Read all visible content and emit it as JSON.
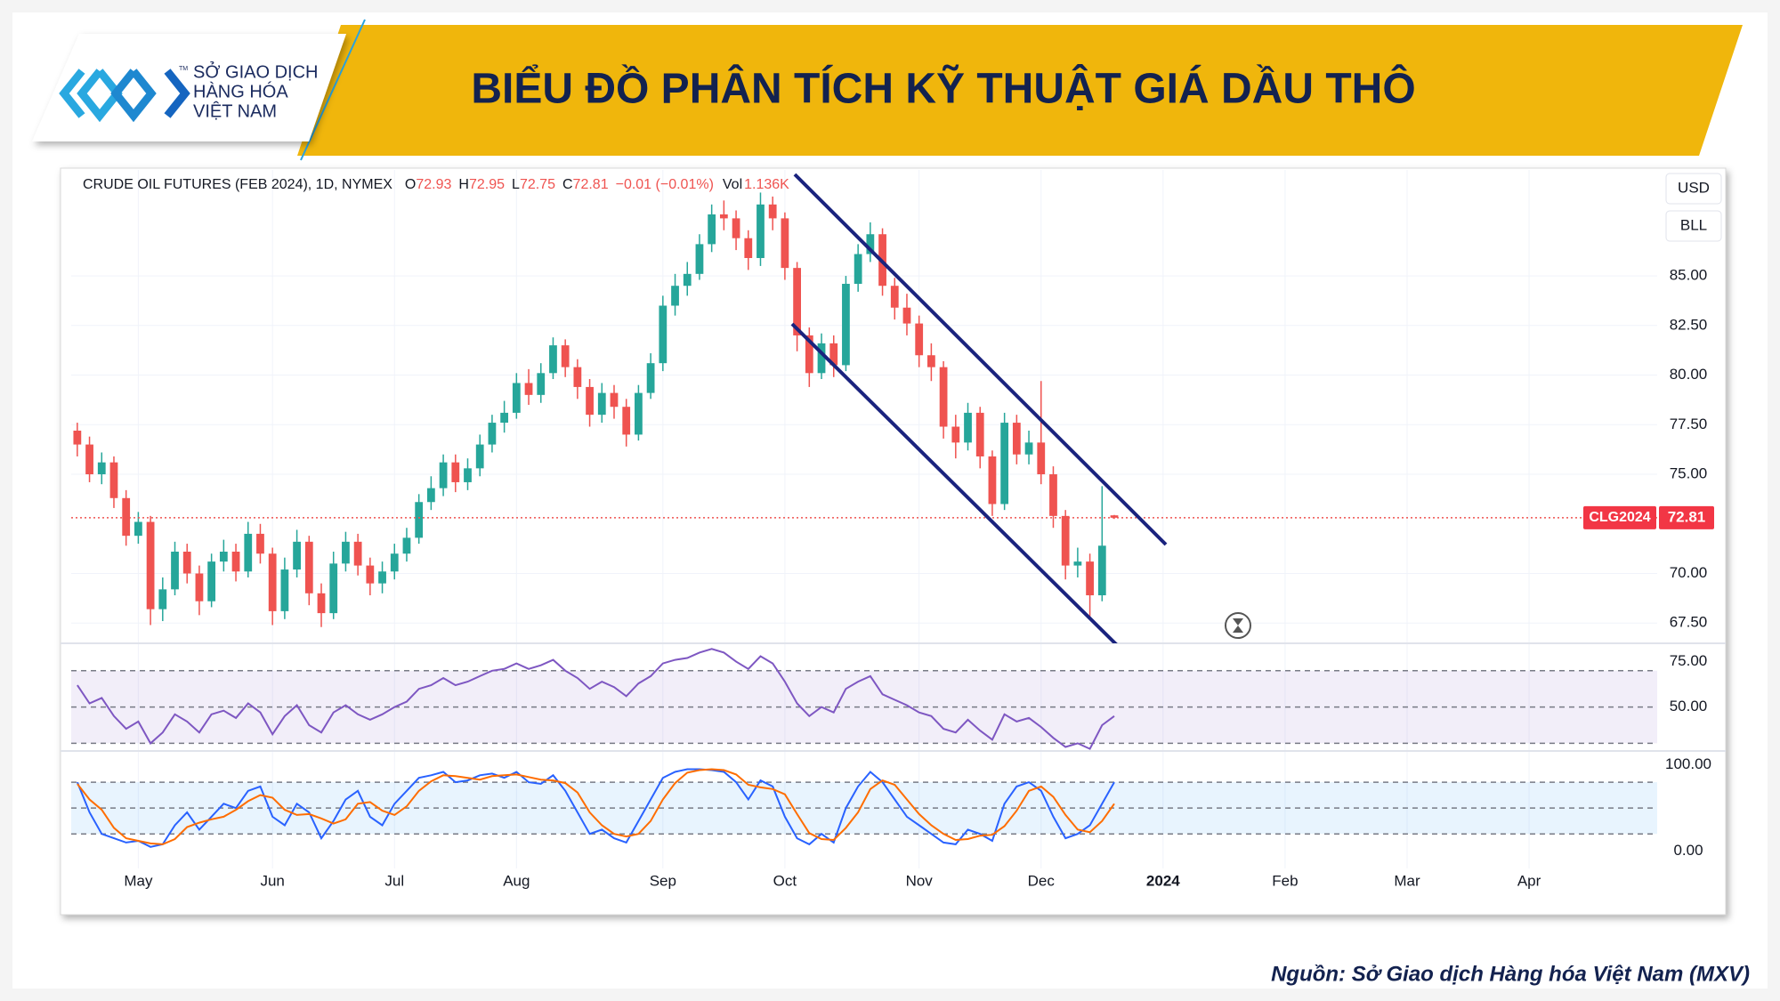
{
  "header": {
    "title": "BIỂU ĐỒ PHÂN TÍCH KỸ THUẬT GIÁ DẦU THÔ",
    "logo_lines": [
      "SỞ GIAO DỊCH",
      "HÀNG HÓA",
      "VIỆT NAM"
    ],
    "logo_tm": "TM"
  },
  "chart_data": {
    "type": "candlestick",
    "instrument": "CRUDE OIL FUTURES (FEB 2024), 1D, NYMEX",
    "ohlc_labels": [
      "O",
      "H",
      "L",
      "C"
    ],
    "change": "−0.01 (−0.01%)",
    "volume_label": "Vol",
    "volume": "1.136K",
    "currency": "USD",
    "unit": "BLL",
    "symbol_tag": "CLG2024",
    "colors": {
      "up": "#26a69a",
      "down": "#ef5350"
    },
    "grid": true,
    "categories": [
      null,
      null,
      null,
      null,
      null,
      "May",
      null,
      null,
      null,
      null,
      null,
      null,
      null,
      null,
      null,
      null,
      "Jun",
      null,
      null,
      null,
      null,
      null,
      null,
      null,
      null,
      null,
      "Jul",
      null,
      null,
      null,
      null,
      null,
      null,
      null,
      null,
      null,
      "Aug",
      null,
      null,
      null,
      null,
      null,
      null,
      null,
      null,
      null,
      null,
      null,
      "Sep",
      null,
      null,
      null,
      null,
      null,
      null,
      null,
      null,
      null,
      "Oct",
      null,
      null,
      null,
      null,
      null,
      null,
      null,
      null,
      null,
      null,
      "Nov",
      null,
      null,
      null,
      null,
      null,
      null,
      null,
      null,
      null,
      "Dec",
      null,
      null,
      null,
      null,
      null,
      null,
      null,
      null,
      null,
      "2024",
      null,
      null,
      null,
      null,
      null,
      null,
      null,
      null,
      null,
      "Feb",
      null,
      null,
      null,
      null,
      null,
      null,
      null,
      null,
      null,
      "Mar",
      null,
      null,
      null,
      null,
      null,
      null,
      null,
      null,
      null,
      "Apr",
      null,
      null,
      null,
      null,
      null,
      null,
      null,
      null,
      null,
      null
    ],
    "open": [
      77.2,
      76.5,
      75.0,
      75.6,
      73.8,
      71.9,
      72.6,
      68.2,
      69.2,
      71.1,
      70.0,
      68.6,
      70.6,
      71.1,
      70.1,
      72.0,
      71.0,
      68.1,
      70.2,
      71.6,
      69.0,
      68.0,
      70.5,
      71.6,
      70.4,
      69.5,
      70.1,
      71.0,
      71.8,
      73.6,
      74.3,
      75.6,
      74.6,
      75.3,
      76.5,
      77.6,
      78.1,
      79.6,
      79.0,
      80.1,
      81.5,
      80.4,
      79.4,
      78.0,
      79.1,
      78.4,
      77.0,
      79.1,
      80.6,
      83.5,
      84.5,
      85.1,
      86.6,
      88.1,
      87.9,
      86.9,
      85.9,
      88.6,
      87.9,
      85.4,
      82.0,
      80.1,
      81.6,
      80.5,
      84.6,
      86.1,
      87.1,
      84.5,
      83.4,
      82.6,
      81.0,
      80.4,
      77.4,
      76.6,
      78.1,
      75.9,
      73.5,
      77.6,
      76.0,
      76.6,
      75.0,
      72.9,
      70.4,
      70.6,
      68.9,
      72.93,
      null,
      null,
      null,
      null,
      null,
      null,
      null,
      null,
      null,
      null,
      null,
      null,
      null,
      null,
      null,
      null,
      null,
      null,
      null,
      null,
      null,
      null,
      null,
      null,
      null,
      null,
      null,
      null,
      null,
      null,
      null,
      null,
      null,
      null,
      null,
      null,
      null,
      null,
      null,
      null,
      null,
      null,
      null,
      null
    ],
    "high": [
      77.6,
      76.9,
      76.1,
      75.9,
      74.2,
      73.1,
      72.9,
      69.8,
      71.6,
      71.5,
      70.4,
      71.0,
      71.7,
      71.5,
      72.6,
      72.5,
      71.3,
      70.8,
      72.2,
      71.9,
      69.5,
      71.1,
      72.1,
      72.0,
      70.8,
      70.6,
      71.5,
      72.3,
      74.0,
      74.9,
      76.0,
      76.0,
      75.8,
      77.0,
      78.0,
      78.7,
      80.1,
      80.3,
      80.6,
      81.9,
      81.8,
      80.8,
      79.8,
      79.6,
      79.5,
      78.8,
      79.5,
      81.1,
      84.0,
      85.1,
      85.7,
      87.1,
      88.6,
      88.8,
      88.3,
      87.3,
      89.2,
      89.0,
      88.2,
      85.7,
      82.4,
      82.1,
      82.0,
      85.0,
      86.6,
      87.7,
      87.4,
      84.9,
      84.1,
      83.0,
      81.6,
      80.7,
      78.0,
      78.6,
      78.4,
      76.2,
      78.1,
      78.0,
      77.2,
      79.7,
      75.4,
      73.2,
      71.3,
      71.0,
      74.4,
      72.95,
      null,
      null,
      null,
      null,
      null,
      null,
      null,
      null,
      null,
      null,
      null,
      null,
      null,
      null,
      null,
      null,
      null,
      null,
      null,
      null,
      null,
      null,
      null,
      null,
      null,
      null,
      null,
      null,
      null,
      null,
      null,
      null,
      null,
      null,
      null,
      null,
      null,
      null,
      null,
      null,
      null,
      null,
      null,
      null
    ],
    "low": [
      75.9,
      74.6,
      74.5,
      73.3,
      71.4,
      71.5,
      67.4,
      67.6,
      68.9,
      69.5,
      67.9,
      68.3,
      70.1,
      69.6,
      69.8,
      70.5,
      67.4,
      67.7,
      69.8,
      68.4,
      67.3,
      67.7,
      70.1,
      69.9,
      68.9,
      69.0,
      69.7,
      70.6,
      71.5,
      73.2,
      73.9,
      74.1,
      74.2,
      74.9,
      76.1,
      77.1,
      77.8,
      78.5,
      78.6,
      79.8,
      79.9,
      78.8,
      77.4,
      77.6,
      77.8,
      76.4,
      76.7,
      78.8,
      80.2,
      83.0,
      84.0,
      84.8,
      86.2,
      87.3,
      86.3,
      85.3,
      85.5,
      87.3,
      84.8,
      81.2,
      79.4,
      79.8,
      79.9,
      80.2,
      84.2,
      85.7,
      84.0,
      82.8,
      82.0,
      80.4,
      79.7,
      76.8,
      75.8,
      76.2,
      75.3,
      72.9,
      73.2,
      75.5,
      75.5,
      74.5,
      72.3,
      69.7,
      69.8,
      67.8,
      68.6,
      72.75,
      null,
      null,
      null,
      null,
      null,
      null,
      null,
      null,
      null,
      null,
      null,
      null,
      null,
      null,
      null,
      null,
      null,
      null,
      null,
      null,
      null,
      null,
      null,
      null,
      null,
      null,
      null,
      null,
      null,
      null,
      null,
      null,
      null,
      null,
      null,
      null,
      null,
      null,
      null,
      null,
      null,
      null,
      null,
      null
    ],
    "close": [
      76.5,
      75.0,
      75.6,
      73.8,
      71.9,
      72.6,
      68.2,
      69.2,
      71.1,
      70.0,
      68.6,
      70.6,
      71.1,
      70.1,
      72.0,
      71.0,
      68.1,
      70.2,
      71.6,
      69.0,
      68.0,
      70.5,
      71.6,
      70.4,
      69.5,
      70.1,
      71.0,
      71.8,
      73.6,
      74.3,
      75.6,
      74.6,
      75.3,
      76.5,
      77.6,
      78.1,
      79.6,
      79.0,
      80.1,
      81.5,
      80.4,
      79.4,
      78.0,
      79.1,
      78.4,
      77.0,
      79.1,
      80.6,
      83.5,
      84.5,
      85.1,
      86.6,
      88.1,
      87.9,
      86.9,
      85.9,
      88.6,
      87.9,
      85.4,
      82.0,
      80.1,
      81.6,
      80.5,
      84.6,
      86.1,
      87.1,
      84.5,
      83.4,
      82.6,
      81.0,
      80.4,
      77.4,
      76.6,
      78.1,
      75.9,
      73.5,
      77.6,
      76.0,
      76.6,
      75.0,
      72.9,
      70.4,
      70.6,
      68.9,
      71.4,
      72.81,
      null,
      null,
      null,
      null,
      null,
      null,
      null,
      null,
      null,
      null,
      null,
      null,
      null,
      null,
      null,
      null,
      null,
      null,
      null,
      null,
      null,
      null,
      null,
      null,
      null,
      null,
      null,
      null,
      null,
      null,
      null,
      null,
      null,
      null,
      null,
      null,
      null,
      null,
      null,
      null,
      null,
      null,
      null,
      null
    ],
    "ylim": [
      66.48,
      90.34
    ],
    "yticks": [
      {
        "value": 67.5,
        "label": "67.50"
      },
      {
        "value": 70,
        "label": "70.00"
      },
      {
        "value": 75,
        "label": "75.00"
      },
      {
        "value": 77.5,
        "label": "77.50"
      },
      {
        "value": 80,
        "label": "80.00"
      },
      {
        "value": 82.5,
        "label": "82.50"
      },
      {
        "value": 85,
        "label": "85.00"
      }
    ],
    "rsi": {
      "color": "#7e57c2",
      "values": [
        62,
        52,
        55,
        45,
        38,
        42,
        30,
        36,
        46,
        42,
        36,
        46,
        48,
        44,
        52,
        47,
        35,
        45,
        51,
        40,
        36,
        47,
        51,
        46,
        43,
        46,
        50,
        53,
        60,
        62,
        66,
        62,
        64,
        67,
        70,
        71,
        74,
        71,
        73,
        76,
        70,
        66,
        60,
        64,
        61,
        56,
        63,
        67,
        74,
        76,
        77,
        80,
        82,
        80,
        75,
        71,
        78,
        74,
        64,
        52,
        45,
        50,
        47,
        60,
        64,
        67,
        57,
        54,
        51,
        47,
        45,
        38,
        36,
        43,
        37,
        32,
        46,
        42,
        44,
        39,
        33,
        28,
        30,
        27,
        40,
        45,
        null,
        null,
        null,
        null,
        null,
        null,
        null,
        null,
        null,
        null,
        null,
        null,
        null,
        null,
        null,
        null,
        null,
        null,
        null,
        null,
        null,
        null,
        null,
        null,
        null,
        null,
        null,
        null,
        null,
        null,
        null,
        null,
        null,
        null,
        null,
        null,
        null,
        null,
        null,
        null,
        null,
        null,
        null,
        null
      ],
      "ylim": [
        25.8,
        85.1
      ],
      "yticks": [
        {
          "value": 50,
          "label": "50.00"
        },
        {
          "value": 75,
          "label": "75.00"
        }
      ],
      "bands": [
        70,
        50,
        30
      ]
    },
    "stoch": {
      "series": [
        {
          "color": "#2962ff",
          "values": [
            80,
            45,
            20,
            15,
            10,
            12,
            5,
            8,
            30,
            45,
            25,
            40,
            55,
            50,
            70,
            75,
            40,
            30,
            55,
            45,
            15,
            35,
            60,
            70,
            40,
            30,
            55,
            70,
            85,
            88,
            92,
            80,
            82,
            88,
            90,
            85,
            92,
            80,
            78,
            88,
            70,
            45,
            20,
            25,
            15,
            10,
            35,
            60,
            85,
            92,
            95,
            95,
            94,
            92,
            80,
            60,
            82,
            75,
            40,
            15,
            8,
            20,
            10,
            50,
            75,
            92,
            80,
            60,
            40,
            30,
            20,
            10,
            8,
            25,
            20,
            12,
            55,
            75,
            80,
            70,
            40,
            15,
            20,
            30,
            55,
            80,
            null,
            null,
            null,
            null,
            null,
            null,
            null,
            null,
            null,
            null,
            null,
            null,
            null,
            null,
            null,
            null,
            null,
            null,
            null,
            null,
            null,
            null,
            null,
            null,
            null,
            null,
            null,
            null,
            null,
            null,
            null,
            null,
            null,
            null,
            null,
            null,
            null,
            null,
            null,
            null,
            null,
            null,
            null,
            null
          ]
        },
        {
          "color": "#ff6d00",
          "values": [
            78,
            60,
            48,
            27,
            15,
            12,
            9,
            8,
            14,
            28,
            33,
            37,
            40,
            48,
            58,
            65,
            62,
            48,
            42,
            43,
            38,
            32,
            37,
            55,
            57,
            47,
            42,
            52,
            70,
            81,
            88,
            87,
            85,
            83,
            87,
            88,
            89,
            86,
            83,
            82,
            79,
            68,
            45,
            30,
            20,
            17,
            20,
            35,
            60,
            79,
            91,
            94,
            95,
            94,
            89,
            77,
            74,
            72,
            66,
            43,
            21,
            14,
            13,
            27,
            45,
            72,
            82,
            77,
            60,
            43,
            30,
            20,
            13,
            14,
            18,
            19,
            29,
            47,
            70,
            75,
            63,
            42,
            25,
            22,
            35,
            55,
            null,
            null,
            null,
            null,
            null,
            null,
            null,
            null,
            null,
            null,
            null,
            null,
            null,
            null,
            null,
            null,
            null,
            null,
            null,
            null,
            null,
            null,
            null,
            null,
            null,
            null,
            null,
            null,
            null,
            null,
            null,
            null,
            null,
            null,
            null,
            null,
            null,
            null,
            null,
            null,
            null,
            null,
            null,
            null
          ]
        }
      ],
      "ylim": [
        -20,
        116.2
      ],
      "yticks": [
        {
          "value": 0,
          "label": "0.00"
        },
        {
          "value": 100,
          "label": "100.00"
        }
      ],
      "bands": [
        80,
        50,
        20
      ]
    }
  },
  "footer": {
    "source": "Nguồn: Sở Giao dịch Hàng hóa Việt Nam (MXV)"
  }
}
